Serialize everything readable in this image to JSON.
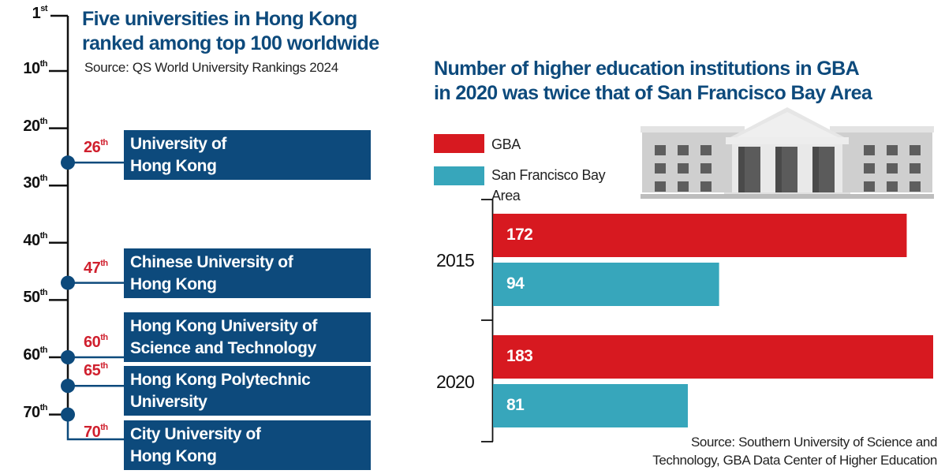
{
  "left_panel": {
    "title_line1": "Five universities in Hong Kong",
    "title_line2": "ranked among top 100 worldwide",
    "source": "Source: QS World University Rankings 2024"
  },
  "right_panel": {
    "title_line1": "Number of higher education institutions in GBA",
    "title_line2": "in 2020 was twice that of San Francisco Bay Area",
    "legend": [
      {
        "label_line1": "GBA",
        "label_line2": "",
        "color": "#d71920"
      },
      {
        "label_line1": "San Francisco Bay",
        "label_line2": "Area",
        "color": "#37a6bb"
      }
    ],
    "source_line1": "Source: Southern University of Science and",
    "source_line2": "Technology, GBA Data Center of Higher Education",
    "illustration": "university-building-icon"
  },
  "colors": {
    "navy": "#0d4a7c",
    "red": "#d71920",
    "rank_red": "#d0202e",
    "teal": "#37a6bb"
  },
  "chart_data": [
    {
      "type": "timeline",
      "title": "Five universities in Hong Kong ranked among top 100 worldwide",
      "subtitle": "Source: QS World University Rankings 2024",
      "axis": {
        "range": [
          1,
          70
        ],
        "ticks": [
          {
            "value": 1,
            "num": "1",
            "suffix": "st"
          },
          {
            "value": 10,
            "num": "10",
            "suffix": "th"
          },
          {
            "value": 20,
            "num": "20",
            "suffix": "th"
          },
          {
            "value": 30,
            "num": "30",
            "suffix": "th"
          },
          {
            "value": 40,
            "num": "40",
            "suffix": "th"
          },
          {
            "value": 50,
            "num": "50",
            "suffix": "th"
          },
          {
            "value": 60,
            "num": "60",
            "suffix": "th"
          },
          {
            "value": 70,
            "num": "70",
            "suffix": "th"
          }
        ]
      },
      "points": [
        {
          "rank": 26,
          "num": "26",
          "suffix": "th",
          "name_line1": "University of",
          "name_line2": "Hong Kong"
        },
        {
          "rank": 47,
          "num": "47",
          "suffix": "th",
          "name_line1": "Chinese University of",
          "name_line2": "Hong Kong"
        },
        {
          "rank": 60,
          "num": "60",
          "suffix": "th",
          "name_line1": "Hong Kong University of",
          "name_line2": "Science and Technology"
        },
        {
          "rank": 65,
          "num": "65",
          "suffix": "th",
          "name_line1": "Hong Kong Polytechnic",
          "name_line2": "University"
        },
        {
          "rank": 70,
          "num": "70",
          "suffix": "th",
          "name_line1": "City University of",
          "name_line2": "Hong Kong"
        }
      ]
    },
    {
      "type": "bar",
      "orientation": "horizontal",
      "title": "Number of higher education institutions in GBA in 2020 was twice that of San Francisco Bay Area",
      "categories": [
        "2015",
        "2020"
      ],
      "series": [
        {
          "name": "GBA",
          "values": [
            172,
            183
          ]
        },
        {
          "name": "San Francisco Bay Area",
          "values": [
            94,
            81
          ]
        }
      ],
      "xlim": [
        0,
        183
      ],
      "legend_position": "top-left",
      "source": "Source: Southern University of Science and Technology, GBA Data Center of Higher Education"
    }
  ]
}
